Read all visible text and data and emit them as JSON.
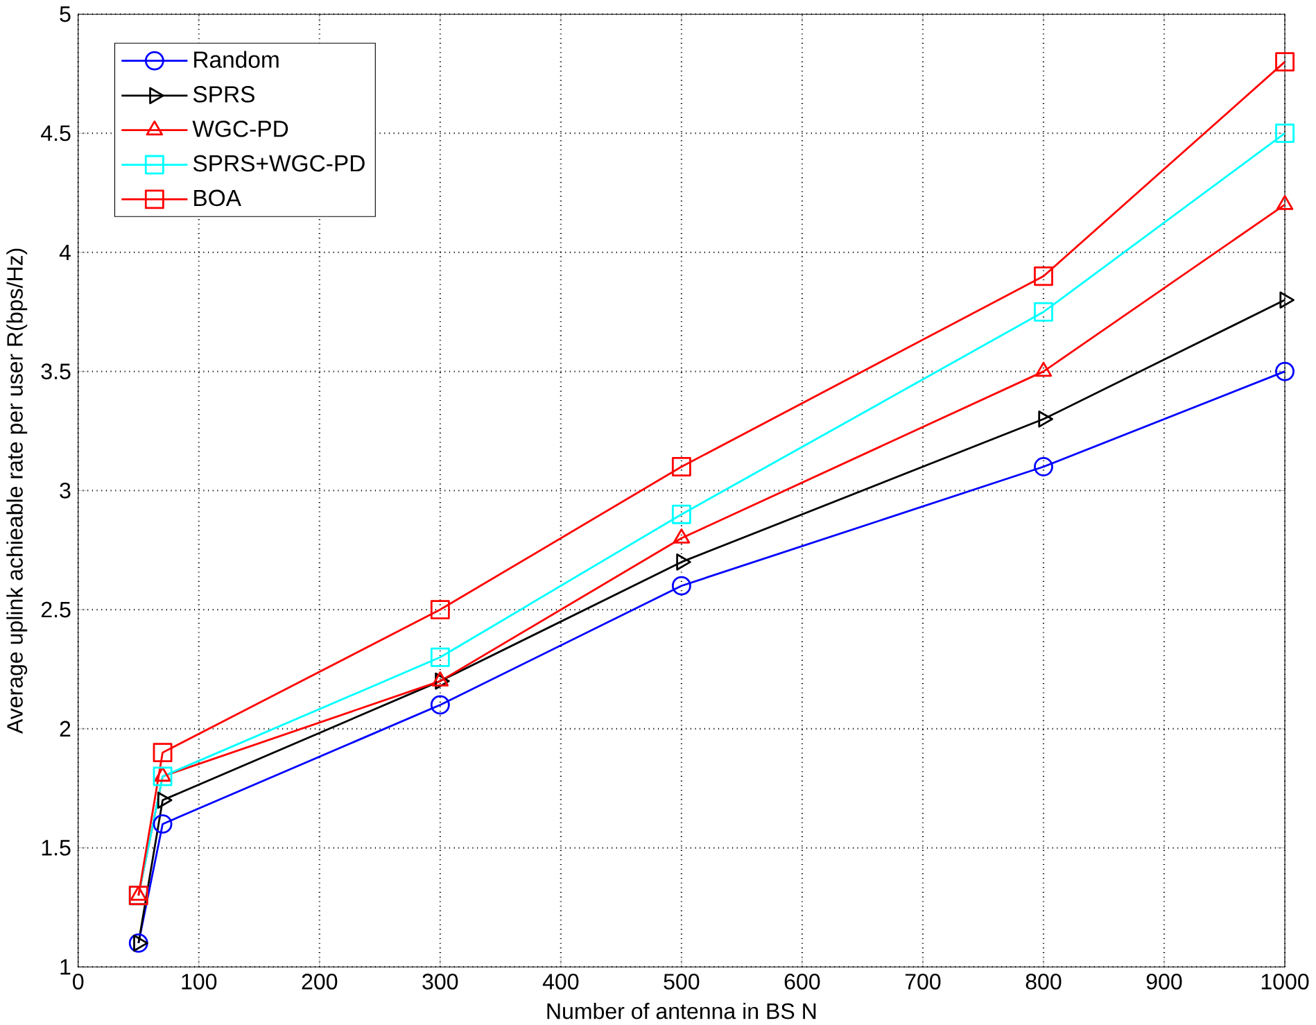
{
  "chart_data": {
    "type": "line",
    "xlabel": "Number of antenna in BS N",
    "ylabel": "Average uplink achieable rate per user R(bps/Hz)",
    "x": [
      50,
      70,
      300,
      500,
      800,
      1000
    ],
    "series": [
      {
        "name": "Random",
        "color": "#0000ff",
        "marker": "circle",
        "values": [
          1.1,
          1.6,
          2.1,
          2.6,
          3.1,
          3.5
        ]
      },
      {
        "name": "SPRS",
        "color": "#000000",
        "marker": "triangle-right",
        "values": [
          1.1,
          1.7,
          2.2,
          2.7,
          3.3,
          3.8
        ]
      },
      {
        "name": "WGC-PD",
        "color": "#fe0000",
        "marker": "triangle",
        "values": [
          1.3,
          1.8,
          2.2,
          2.8,
          3.5,
          4.2
        ]
      },
      {
        "name": "SPRS+WGC-PD",
        "color": "#00ffff",
        "marker": "square",
        "values": [
          1.3,
          1.8,
          2.3,
          2.9,
          3.75,
          4.5
        ]
      },
      {
        "name": "BOA",
        "color": "#ff0000",
        "marker": "square",
        "values": [
          1.3,
          1.9,
          2.5,
          3.1,
          3.9,
          4.8
        ]
      }
    ],
    "xlim": [
      0,
      1000
    ],
    "ylim": [
      1,
      5
    ],
    "xticks": [
      0,
      100,
      200,
      300,
      400,
      500,
      600,
      700,
      800,
      900,
      1000
    ],
    "yticks": [
      1,
      1.5,
      2,
      2.5,
      3,
      3.5,
      4,
      4.5,
      5
    ],
    "grid": true,
    "legend": "top left",
    "line_style": "solid"
  }
}
